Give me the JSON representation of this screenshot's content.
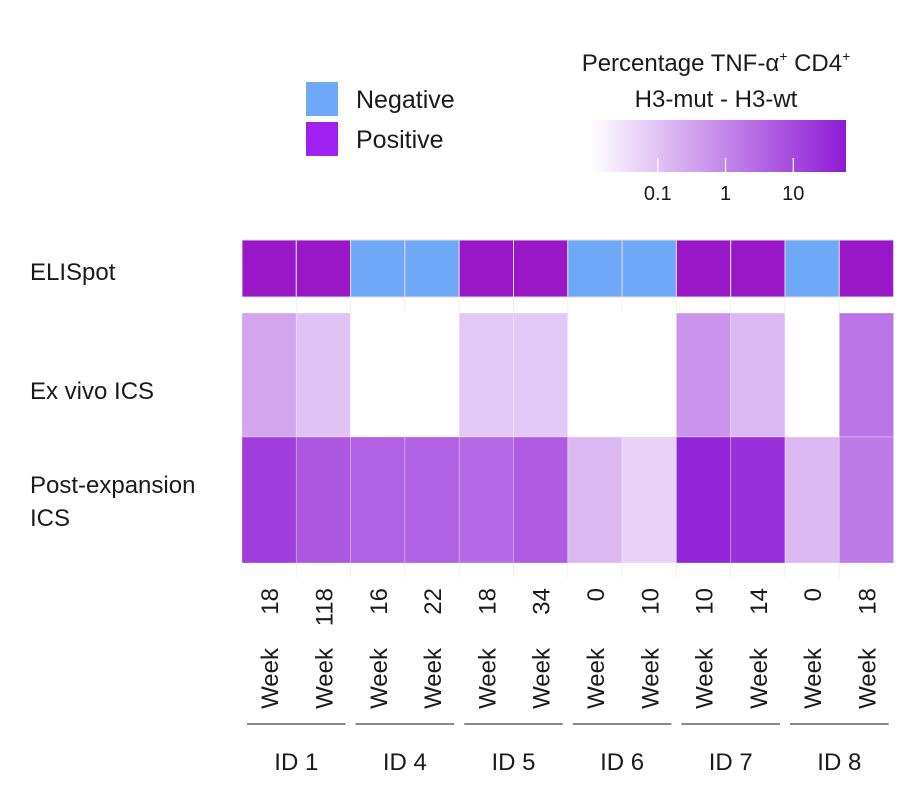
{
  "chart_data": {
    "type": "heatmap",
    "legend": {
      "items": [
        {
          "label": "Negative",
          "color": "#6ea8f7"
        },
        {
          "label": "Positive",
          "color": "#a020f0"
        }
      ]
    },
    "colorbar": {
      "title_line1_main": "Percentage TNF-α",
      "title_line1_sup1": "+",
      "title_line1_cd": " CD4",
      "title_line1_sup2": "+",
      "title_line2": "H3-mut - H3-wt",
      "scale": "log10",
      "range": [
        0.01,
        60
      ],
      "ticks": [
        {
          "label": "0.1",
          "value": 0.1
        },
        {
          "label": "1",
          "value": 1
        },
        {
          "label": "10",
          "value": 10
        }
      ],
      "color_low": "#ffffff",
      "color_high": "#8e1ad6"
    },
    "columns": [
      {
        "week_word": "Week",
        "week_num": "18"
      },
      {
        "week_word": "Week",
        "week_num": "118"
      },
      {
        "week_word": "Week",
        "week_num": "16"
      },
      {
        "week_word": "Week",
        "week_num": "22"
      },
      {
        "week_word": "Week",
        "week_num": "18"
      },
      {
        "week_word": "Week",
        "week_num": "34"
      },
      {
        "week_word": "Week",
        "week_num": "0"
      },
      {
        "week_word": "Week",
        "week_num": "10"
      },
      {
        "week_word": "Week",
        "week_num": "10"
      },
      {
        "week_word": "Week",
        "week_num": "14"
      },
      {
        "week_word": "Week",
        "week_num": "0"
      },
      {
        "week_word": "Week",
        "week_num": "18"
      }
    ],
    "groups": [
      {
        "label": "ID 1",
        "span": 2
      },
      {
        "label": "ID 4",
        "span": 2
      },
      {
        "label": "ID 5",
        "span": 2
      },
      {
        "label": "ID 6",
        "span": 2
      },
      {
        "label": "ID 7",
        "span": 2
      },
      {
        "label": "ID 8",
        "span": 2
      }
    ],
    "rows": {
      "elispot": {
        "label": "ELISpot",
        "values": [
          "Positive",
          "Positive",
          "Negative",
          "Negative",
          "Positive",
          "Positive",
          "Negative",
          "Negative",
          "Positive",
          "Positive",
          "Negative",
          "Positive"
        ]
      },
      "ex_vivo": {
        "label": "Ex vivo ICS",
        "values": [
          0.3,
          0.1,
          0,
          0,
          0.08,
          0.08,
          0,
          0,
          0.6,
          0.15,
          0,
          2
        ]
      },
      "post_expansion": {
        "label_line1": "Post-expansion",
        "label_line2": "ICS",
        "values": [
          15,
          6,
          4,
          4,
          3,
          5,
          0.15,
          0.06,
          40,
          25,
          0.15,
          1.5
        ]
      }
    }
  }
}
